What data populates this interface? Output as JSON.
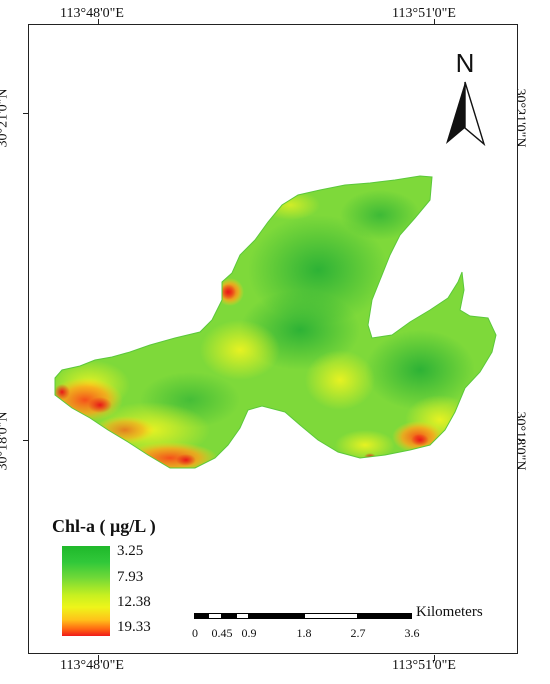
{
  "coords": {
    "top_left": "113°48'0\"E",
    "top_right": "113°51'0\"E",
    "bottom_left": "113°48'0\"E",
    "bottom_right": "113°51'0\"E",
    "left_top": "30°21'0\"N",
    "left_bottom": "30°18'0\"N",
    "right_top": "30°21'0\"N",
    "right_bottom": "30°18'0\"N"
  },
  "north_arrow": {
    "label": "N",
    "icon": "north-arrow-icon"
  },
  "legend": {
    "title": "Chl-a ( μg/L )",
    "values": [
      "3.25",
      "7.93",
      "12.38",
      "19.33"
    ],
    "colors": [
      "#1fb82a",
      "#6fd838",
      "#eef51a",
      "#f01a1a"
    ]
  },
  "scale_bar": {
    "unit": "Kilometers",
    "labels": [
      "0",
      "0.45",
      "0.9",
      "1.8",
      "2.7",
      "3.6"
    ]
  },
  "colors": {
    "frame": "#222222",
    "water_green": "#3cc43a",
    "water_yellow": "#e8f020",
    "water_red": "#f03a18"
  }
}
